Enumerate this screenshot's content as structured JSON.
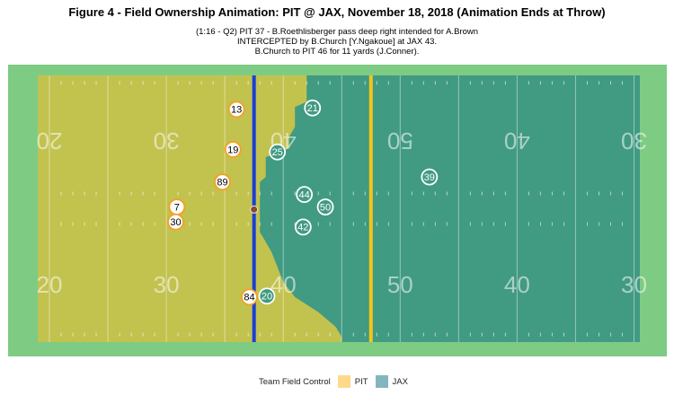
{
  "chart_data": {
    "type": "scatter",
    "title": "Figure 4 - Field Ownership Animation: PIT @ JAX, November 18, 2018 (Animation Ends at Throw)",
    "subtitle_lines": [
      "(1:16 - Q2) PIT 37 - B.Roethlisberger pass deep right intended for A.Brown",
      "INTERCEPTED by B.Church [Y.Ngakoue] at JAX 43.",
      "B.Church to PIT 46 for 11 yards (J.Conner)."
    ],
    "yard_numbers": [
      "20",
      "30",
      "40",
      "50",
      "40",
      "30"
    ],
    "yard_number_x": [
      20,
      30,
      40,
      50,
      60,
      70
    ],
    "field_x_range": [
      19,
      70.5
    ],
    "field_y_range": [
      0,
      53.3
    ],
    "line_of_scrimmage_x": 37.5,
    "first_down_x": 47.5,
    "ball": {
      "x": 37.5,
      "y": 26.5
    },
    "pit_control_boundary": [
      [
        42,
        53.3
      ],
      [
        42,
        48
      ],
      [
        41,
        47
      ],
      [
        41,
        43
      ],
      [
        40.5,
        41
      ],
      [
        40.5,
        39
      ],
      [
        40,
        38
      ],
      [
        38.5,
        37
      ],
      [
        38.5,
        33
      ],
      [
        38,
        32
      ],
      [
        38,
        22
      ],
      [
        38.5,
        20
      ],
      [
        39,
        18
      ],
      [
        39.5,
        15
      ],
      [
        40,
        12
      ],
      [
        41,
        9
      ],
      [
        43,
        6
      ],
      [
        44.5,
        3
      ],
      [
        45,
        1
      ],
      [
        45,
        0
      ]
    ],
    "players": [
      {
        "team": "PIT",
        "number": "13",
        "x": 36.0,
        "y": 46.5
      },
      {
        "team": "PIT",
        "number": "19",
        "x": 35.7,
        "y": 38.5
      },
      {
        "team": "PIT",
        "number": "89",
        "x": 34.8,
        "y": 32.0
      },
      {
        "team": "PIT",
        "number": "7",
        "x": 30.9,
        "y": 27.0
      },
      {
        "team": "PIT",
        "number": "30",
        "x": 30.8,
        "y": 24.0
      },
      {
        "team": "PIT",
        "number": "84",
        "x": 37.1,
        "y": 9.0
      },
      {
        "team": "JAX",
        "number": "21",
        "x": 42.5,
        "y": 46.8
      },
      {
        "team": "JAX",
        "number": "25",
        "x": 39.5,
        "y": 38.0
      },
      {
        "team": "JAX",
        "number": "39",
        "x": 52.5,
        "y": 33.0
      },
      {
        "team": "JAX",
        "number": "44",
        "x": 41.8,
        "y": 29.5
      },
      {
        "team": "JAX",
        "number": "50",
        "x": 43.6,
        "y": 27.0
      },
      {
        "team": "JAX",
        "number": "42",
        "x": 41.7,
        "y": 23.0
      },
      {
        "team": "JAX",
        "number": "20",
        "x": 38.6,
        "y": 9.2
      }
    ],
    "legend": {
      "title": "Team Field Control",
      "entries": [
        {
          "label": "PIT",
          "color": "#ffd98a"
        },
        {
          "label": "JAX",
          "color": "#82b6bf"
        }
      ]
    },
    "colors": {
      "pit_area": "#c2c24f",
      "jax_area": "#419a82",
      "field_border": "#7ecb83",
      "line_of_scrimmage": "#1a3fd6",
      "first_down": "#f5c518",
      "pit_player_fill": "#ffffff",
      "pit_player_stroke": "#f5a020",
      "jax_player_fill": "#419a82",
      "jax_player_stroke": "#ffffff",
      "ball": "#8b4a2b"
    }
  }
}
